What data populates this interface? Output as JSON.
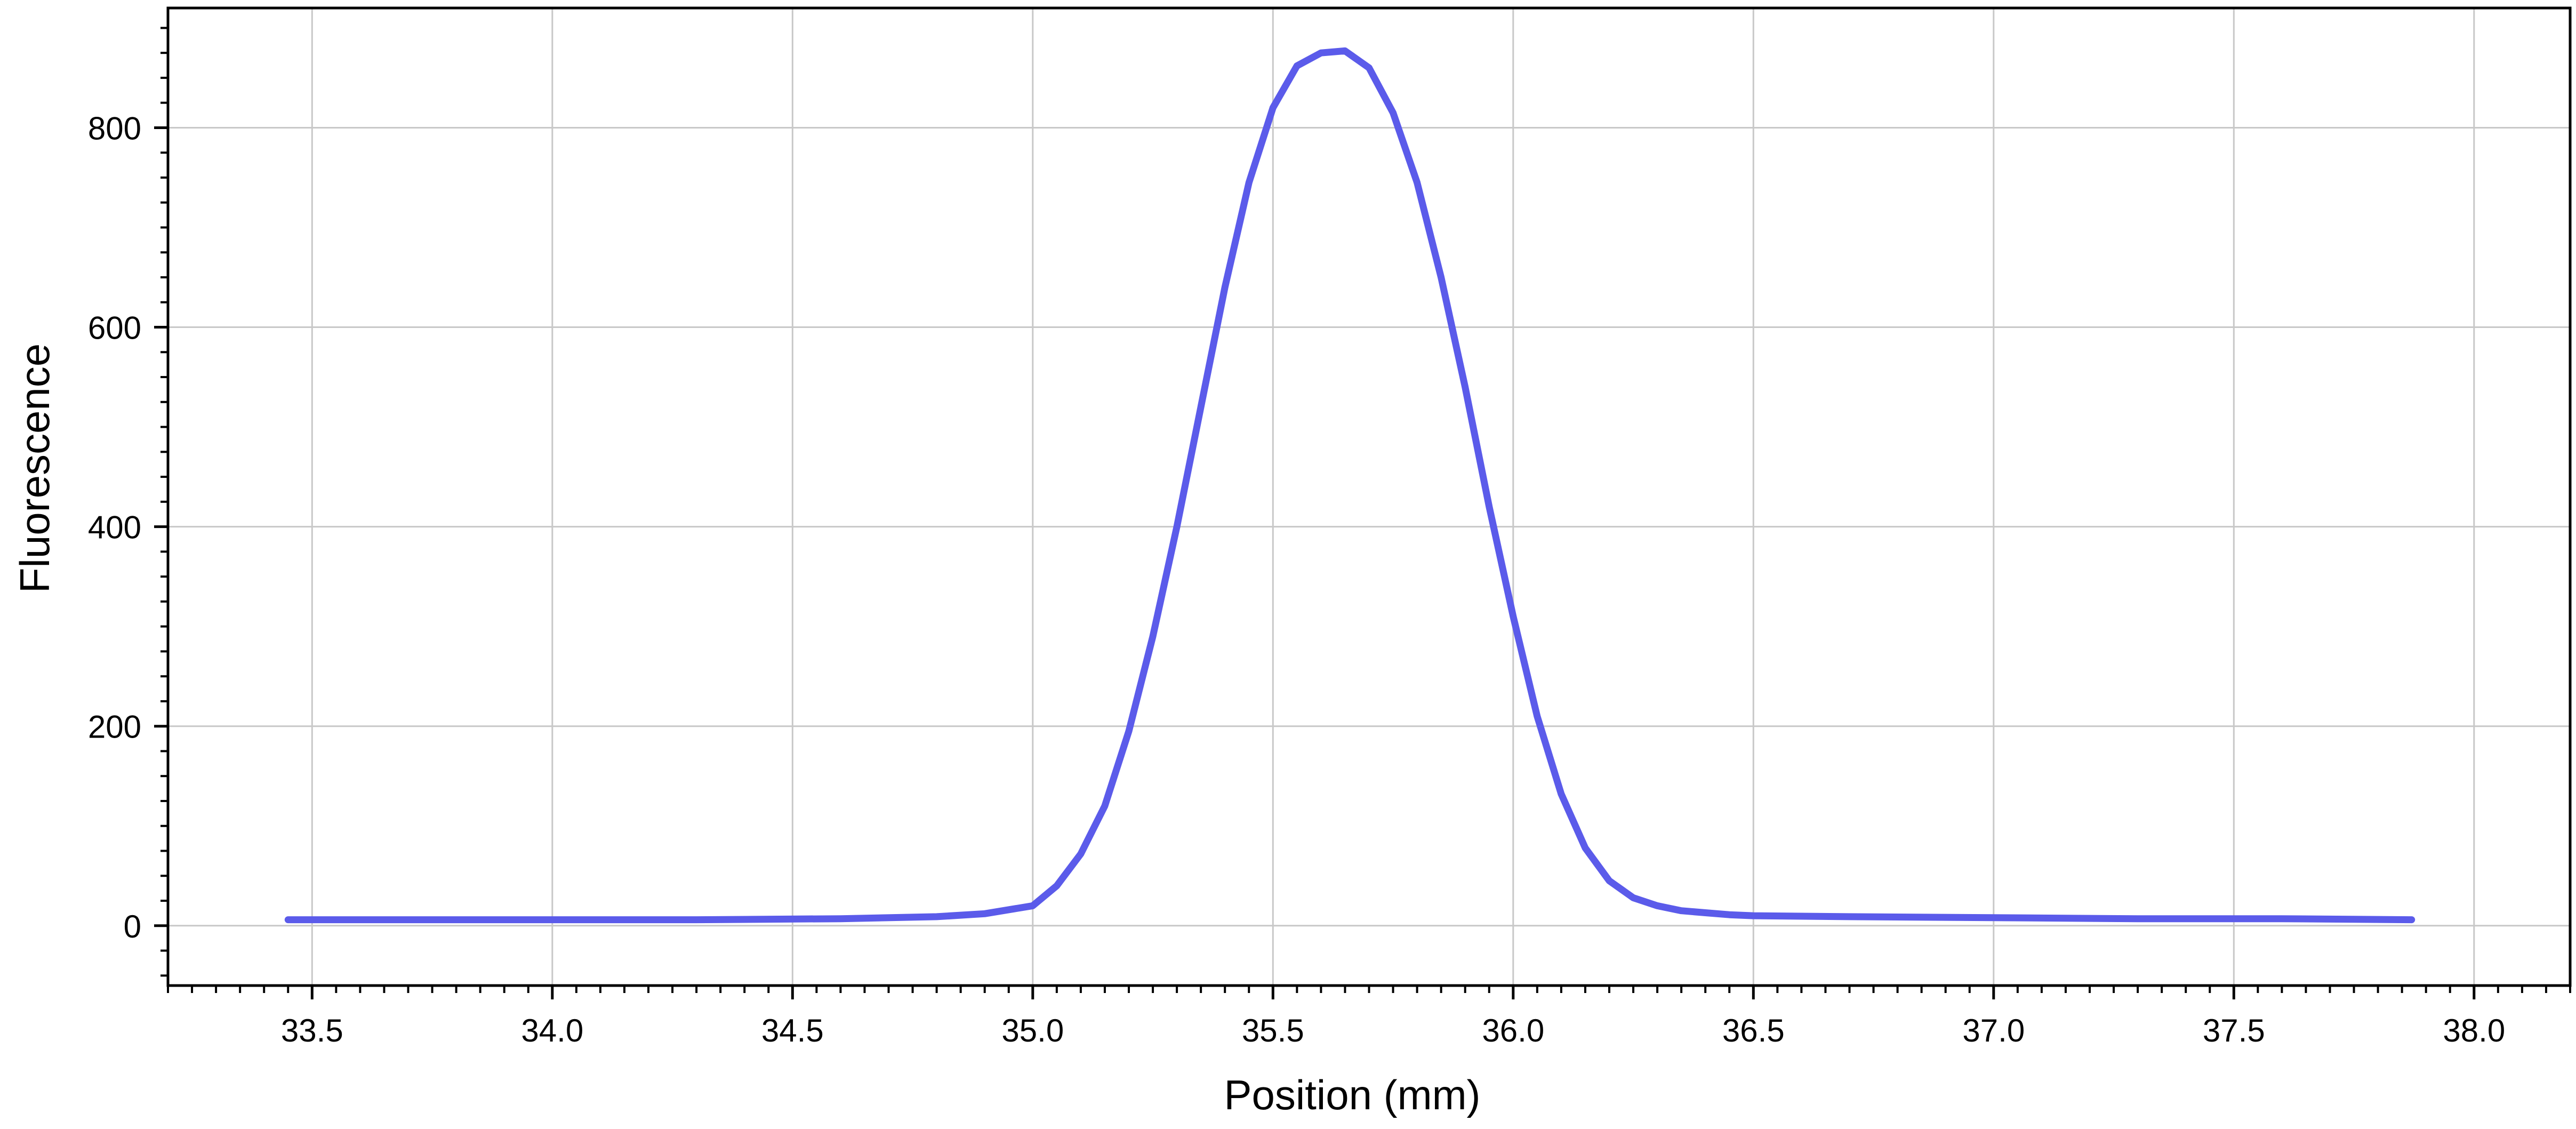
{
  "chart_data": {
    "type": "line",
    "title": "",
    "xlabel": "Position (mm)",
    "ylabel": "Fluorescence",
    "xlim": [
      33.2,
      38.2
    ],
    "ylim": [
      -60,
      920
    ],
    "x_ticks": [
      "33.5",
      "34.0",
      "34.5",
      "35.0",
      "35.5",
      "36.0",
      "36.5",
      "37.0",
      "37.5",
      "38.0"
    ],
    "y_ticks": [
      "0",
      "200",
      "400",
      "600",
      "800"
    ],
    "grid": true,
    "legend": "none",
    "series": [
      {
        "color": "#5b5bea",
        "x": [
          33.45,
          33.7,
          34.0,
          34.3,
          34.6,
          34.8,
          34.9,
          35.0,
          35.05,
          35.1,
          35.15,
          35.2,
          35.25,
          35.3,
          35.35,
          35.4,
          35.45,
          35.5,
          35.55,
          35.6,
          35.65,
          35.7,
          35.75,
          35.8,
          35.85,
          35.9,
          35.95,
          36.0,
          36.05,
          36.1,
          36.15,
          36.2,
          36.25,
          36.3,
          36.35,
          36.4,
          36.45,
          36.5,
          36.7,
          37.0,
          37.3,
          37.6,
          37.87
        ],
        "values": [
          6,
          6,
          6,
          6,
          7,
          9,
          12,
          20,
          40,
          72,
          120,
          195,
          290,
          400,
          520,
          640,
          745,
          820,
          862,
          875,
          877,
          860,
          815,
          745,
          650,
          540,
          420,
          310,
          210,
          132,
          78,
          45,
          28,
          20,
          15,
          13,
          11,
          10,
          9,
          8,
          7,
          7,
          6
        ]
      }
    ]
  }
}
